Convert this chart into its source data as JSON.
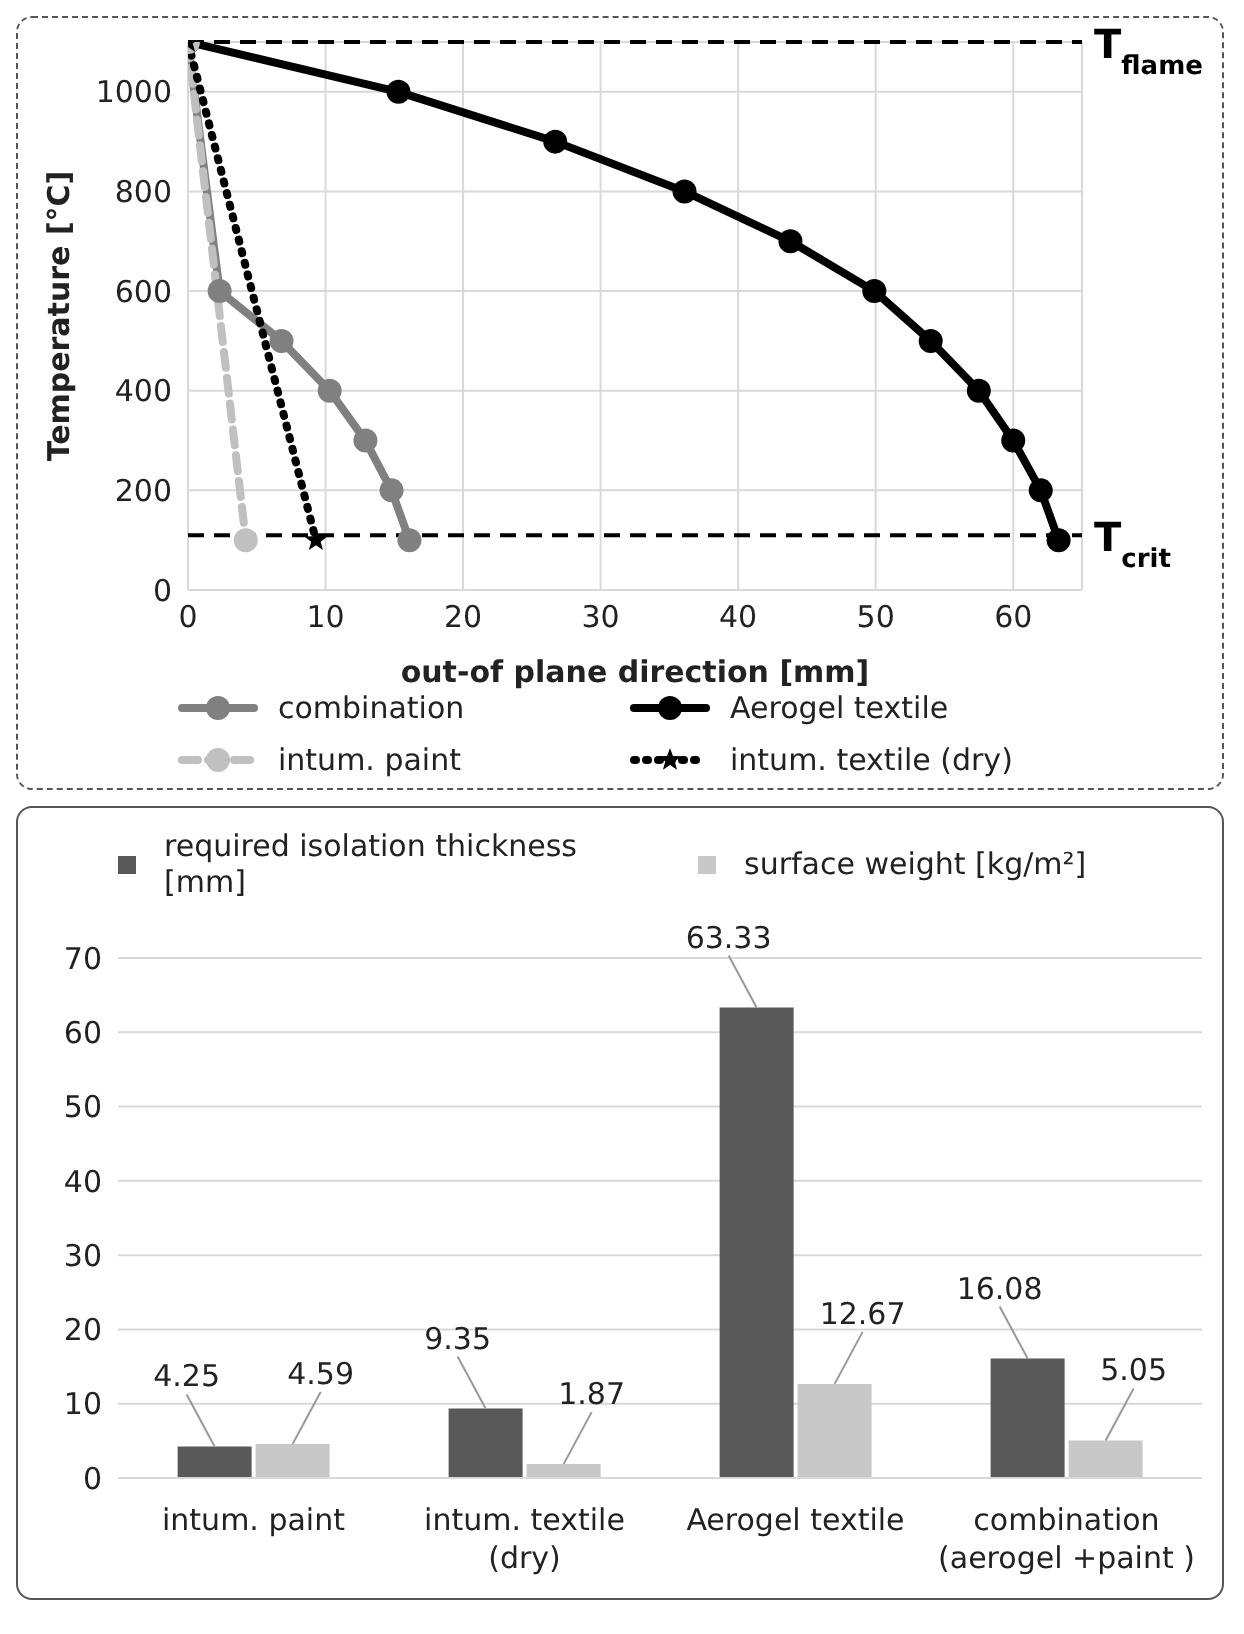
{
  "chart_data": [
    {
      "type": "line",
      "xlabel": "out-of plane direction [mm]",
      "ylabel": "Temperature [°C]",
      "xlim": [
        0,
        65
      ],
      "xticks": [
        0,
        10,
        20,
        30,
        40,
        50,
        60
      ],
      "ylim": [
        0,
        1100
      ],
      "yticks": [
        0,
        200,
        400,
        600,
        800,
        1000
      ],
      "grid": true,
      "legend": "bottom",
      "line_style": "solid",
      "marker": "circle",
      "ref_lines": [
        {
          "axis": "y",
          "value": 1100,
          "label": "T$_{flame}$",
          "color": "#000000",
          "line_style": "dashed"
        },
        {
          "axis": "y",
          "value": 110,
          "label": "T$_{crit}$",
          "color": "#000000",
          "line_style": "dashed"
        }
      ],
      "series": [
        {
          "name": "combination",
          "color": "#808080",
          "x": [
            0,
            2.3,
            6.8,
            10.3,
            12.9,
            14.8,
            16.1
          ],
          "values": [
            1100,
            600,
            500,
            400,
            300,
            200,
            100
          ]
        },
        {
          "name": "Aerogel textile",
          "color": "#000000",
          "x": [
            0,
            15.3,
            26.7,
            36.1,
            43.8,
            49.9,
            54.0,
            57.5,
            60.0,
            62.0,
            63.3
          ],
          "values": [
            1100,
            1000,
            900,
            800,
            700,
            600,
            500,
            400,
            300,
            200,
            100
          ]
        },
        {
          "name": "intum. paint",
          "color": "#c0c0c0",
          "line_style": "dashed",
          "x": [
            0,
            4.2
          ],
          "values": [
            1100,
            100
          ]
        },
        {
          "name": "intum. textile (dry)",
          "color": "#000000",
          "line_style": "dotted",
          "marker": "star",
          "x": [
            0,
            9.3
          ],
          "values": [
            1100,
            100
          ]
        }
      ]
    },
    {
      "type": "bar",
      "categories": [
        "intum. paint",
        "intum. textile (dry)",
        "Aerogel textile",
        "combination (aerogel +paint )"
      ],
      "ylim": [
        0,
        70
      ],
      "yticks": [
        0,
        10,
        20,
        30,
        40,
        50,
        60,
        70
      ],
      "grid": "y",
      "legend": "top",
      "data_labels": true,
      "series": [
        {
          "name": "required isolation thickness [mm]",
          "color": "#595959",
          "values": [
            4.25,
            9.35,
            63.33,
            16.08
          ]
        },
        {
          "name": "surface weight [kg/m²]",
          "color": "#c8c8c8",
          "values": [
            4.59,
            1.87,
            12.67,
            5.05
          ]
        }
      ]
    }
  ]
}
